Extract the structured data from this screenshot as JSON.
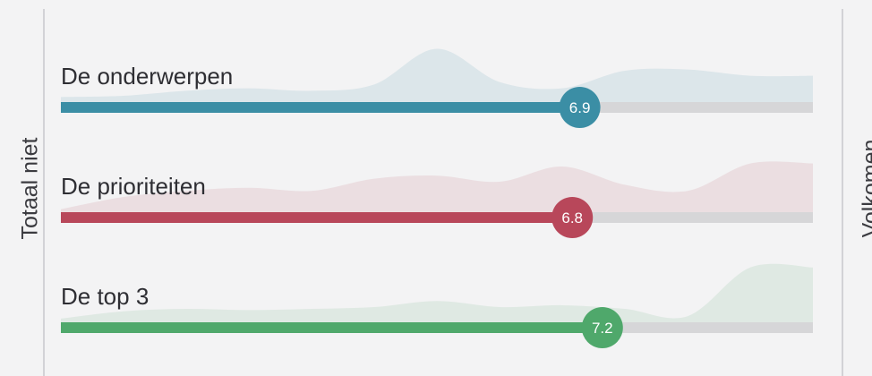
{
  "axis_labels": {
    "left": "Totaal niet",
    "right": "Volkomen"
  },
  "chart_data": {
    "type": "bar",
    "orientation": "horizontal",
    "scale": [
      0,
      10
    ],
    "categories": [
      "De onderwerpen",
      "De prioriteiten",
      "De top 3"
    ],
    "values": [
      6.9,
      6.8,
      7.2
    ],
    "value_labels": [
      "6.9",
      "6.8",
      "7.2"
    ],
    "colors": [
      "#3b8ea5",
      "#b8475a",
      "#4fa86b"
    ],
    "track_color": "#d6d6d8",
    "distributions": [
      [
        0.08,
        0.1,
        0.18,
        0.22,
        0.18,
        0.28,
        0.85,
        0.32,
        0.22,
        0.5,
        0.52,
        0.42,
        0.42
      ],
      [
        0.05,
        0.25,
        0.35,
        0.4,
        0.35,
        0.55,
        0.6,
        0.5,
        0.75,
        0.45,
        0.35,
        0.8,
        0.8
      ],
      [
        0.06,
        0.18,
        0.22,
        0.2,
        0.22,
        0.25,
        0.35,
        0.25,
        0.28,
        0.22,
        0.1,
        0.9,
        0.9
      ]
    ]
  }
}
